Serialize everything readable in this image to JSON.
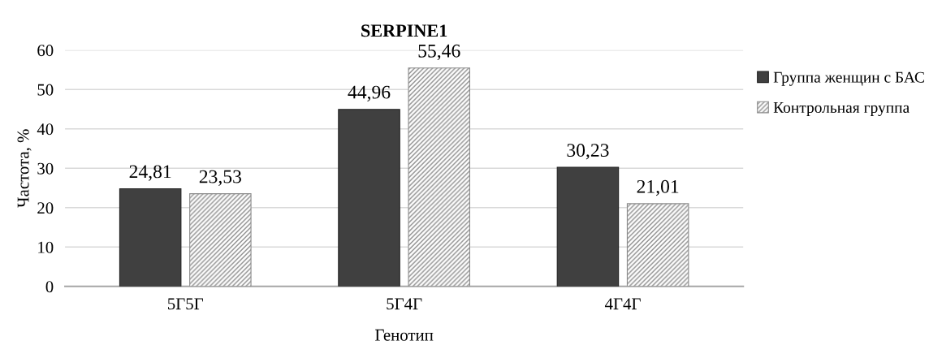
{
  "chart_data": {
    "type": "bar",
    "title": "SERPINE1",
    "xlabel": "Генотип",
    "ylabel": "Частота, %",
    "categories": [
      "5Г5Г",
      "5Г4Г",
      "4Г4Г"
    ],
    "series": [
      {
        "name": "Группа женщин с БАС",
        "color": "#404040",
        "values": [
          24.81,
          44.96,
          30.23
        ],
        "value_labels": [
          "24,81",
          "44,96",
          "30,23"
        ]
      },
      {
        "name": "Контрольная группа",
        "color": "#8c8c8c",
        "values": [
          23.53,
          55.46,
          21.01
        ],
        "value_labels": [
          "23,53",
          "55,46",
          "21,01"
        ]
      }
    ],
    "ylim": [
      0,
      60
    ],
    "yticks": [
      0,
      10,
      20,
      30,
      40,
      50,
      60
    ],
    "grid": "y",
    "legend": "top right"
  }
}
